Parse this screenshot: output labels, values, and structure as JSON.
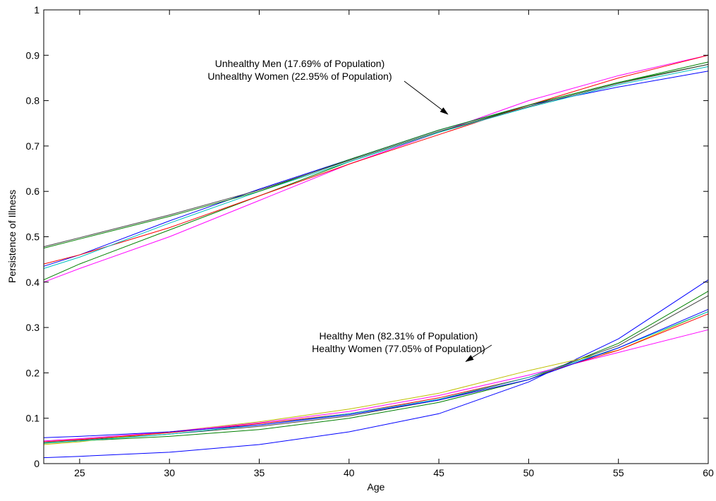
{
  "chart_data": {
    "type": "line",
    "title": "",
    "xlabel": "Age",
    "ylabel": "Persistence of Illness",
    "xlim": [
      23,
      60
    ],
    "ylim": [
      0,
      1
    ],
    "xticks": [
      25,
      30,
      35,
      40,
      45,
      50,
      55,
      60
    ],
    "yticks": [
      0,
      0.1,
      0.2,
      0.3,
      0.4,
      0.5,
      0.6,
      0.7,
      0.8,
      0.9,
      1
    ],
    "grid": false,
    "legend": "none",
    "x": [
      23,
      25,
      30,
      35,
      40,
      45,
      50,
      55,
      60
    ],
    "series": [
      {
        "color": "#ff00ff",
        "values": [
          0.4,
          0.43,
          0.5,
          0.58,
          0.66,
          0.73,
          0.8,
          0.855,
          0.9
        ]
      },
      {
        "color": "#008000",
        "values": [
          0.405,
          0.44,
          0.515,
          0.59,
          0.665,
          0.73,
          0.79,
          0.84,
          0.88
        ]
      },
      {
        "color": "#0000ff",
        "values": [
          0.435,
          0.46,
          0.535,
          0.605,
          0.67,
          0.735,
          0.79,
          0.83,
          0.865
        ]
      },
      {
        "color": "#ff0000",
        "values": [
          0.44,
          0.46,
          0.52,
          0.59,
          0.66,
          0.725,
          0.79,
          0.85,
          0.9
        ]
      },
      {
        "color": "#00bfbf",
        "values": [
          0.43,
          0.455,
          0.53,
          0.6,
          0.665,
          0.73,
          0.785,
          0.835,
          0.875
        ]
      },
      {
        "color": "#008000",
        "values": [
          0.475,
          0.495,
          0.545,
          0.6,
          0.67,
          0.735,
          0.79,
          0.84,
          0.885
        ]
      },
      {
        "color": "#404040",
        "values": [
          0.478,
          0.498,
          0.548,
          0.603,
          0.668,
          0.732,
          0.787,
          0.838,
          0.88
        ]
      },
      {
        "color": "#0000ff",
        "values": [
          0.013,
          0.016,
          0.025,
          0.042,
          0.07,
          0.11,
          0.18,
          0.275,
          0.405
        ]
      },
      {
        "color": "#008000",
        "values": [
          0.045,
          0.05,
          0.06,
          0.075,
          0.1,
          0.135,
          0.185,
          0.265,
          0.38
        ]
      },
      {
        "color": "#404040",
        "values": [
          0.048,
          0.052,
          0.065,
          0.082,
          0.105,
          0.14,
          0.19,
          0.26,
          0.37
        ]
      },
      {
        "color": "#bfbf00",
        "values": [
          0.042,
          0.048,
          0.07,
          0.092,
          0.12,
          0.155,
          0.205,
          0.25,
          0.335
        ]
      },
      {
        "color": "#ff00ff",
        "values": [
          0.05,
          0.055,
          0.07,
          0.09,
          0.115,
          0.15,
          0.195,
          0.245,
          0.295
        ]
      },
      {
        "color": "#ff0000",
        "values": [
          0.048,
          0.053,
          0.068,
          0.088,
          0.11,
          0.145,
          0.19,
          0.25,
          0.33
        ]
      },
      {
        "color": "#00bfbf",
        "values": [
          0.046,
          0.05,
          0.065,
          0.085,
          0.11,
          0.142,
          0.19,
          0.255,
          0.335
        ]
      },
      {
        "color": "#0000ff",
        "values": [
          0.057,
          0.06,
          0.07,
          0.085,
          0.108,
          0.14,
          0.185,
          0.255,
          0.34
        ]
      }
    ],
    "annotations": [
      {
        "lines": [
          "Unhealthy Men (17.69% of Population)",
          "Unhealthy Women (22.95% of Population)"
        ],
        "arrow_to": [
          45.5,
          0.77
        ]
      },
      {
        "lines": [
          "Healthy Men (82.31% of Population)",
          "Healthy Women (77.05% of Population)"
        ],
        "arrow_to": [
          46.5,
          0.225
        ]
      }
    ]
  }
}
